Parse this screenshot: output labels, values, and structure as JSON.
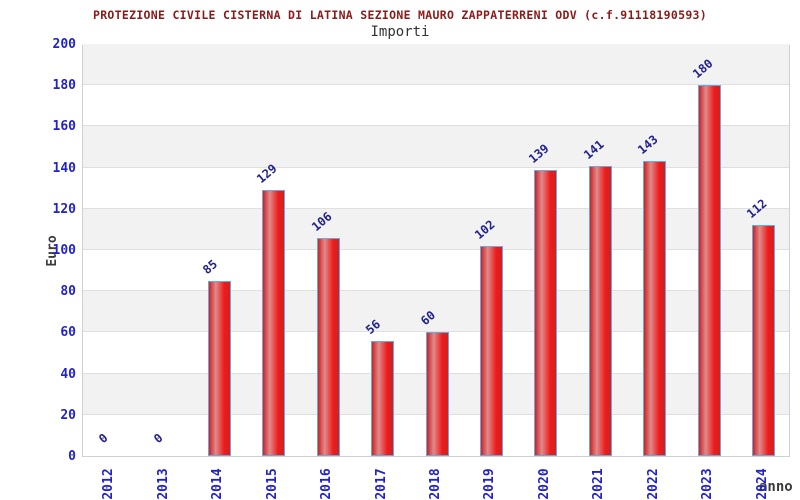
{
  "chart_data": {
    "type": "bar",
    "title": "PROTEZIONE CIVILE CISTERNA DI LATINA SEZIONE MAURO ZAPPATERRENI ODV (c.f.91118190593)",
    "subtitle": "Importi",
    "xlabel": "anno",
    "ylabel": "Euro",
    "categories": [
      "2012",
      "2013",
      "2014",
      "2015",
      "2016",
      "2017",
      "2018",
      "2019",
      "2020",
      "2021",
      "2022",
      "2023",
      "2024"
    ],
    "values": [
      0,
      0,
      85,
      129,
      106,
      56,
      60,
      102,
      139,
      141,
      143,
      180,
      112
    ],
    "ylim": [
      0,
      200
    ],
    "ytick_step": 20,
    "grid": "horizontal",
    "legend_position": "none"
  },
  "colors": {
    "title": "#8b1a1a",
    "subtitle": "#333333",
    "axis_tick_text": "#2222cc",
    "value_label_text": "#22228c",
    "axis_title_text": "#3c3c3c",
    "band_gray": "#f2f2f2",
    "gridline": "#e0e0e0",
    "plot_border": "#d0d0d0",
    "bar_border": "#6ba7e0",
    "bar_red_dark": "#cc2222",
    "bar_red_light": "#e08a8a",
    "bar_red_bright": "#ee1c1c"
  }
}
